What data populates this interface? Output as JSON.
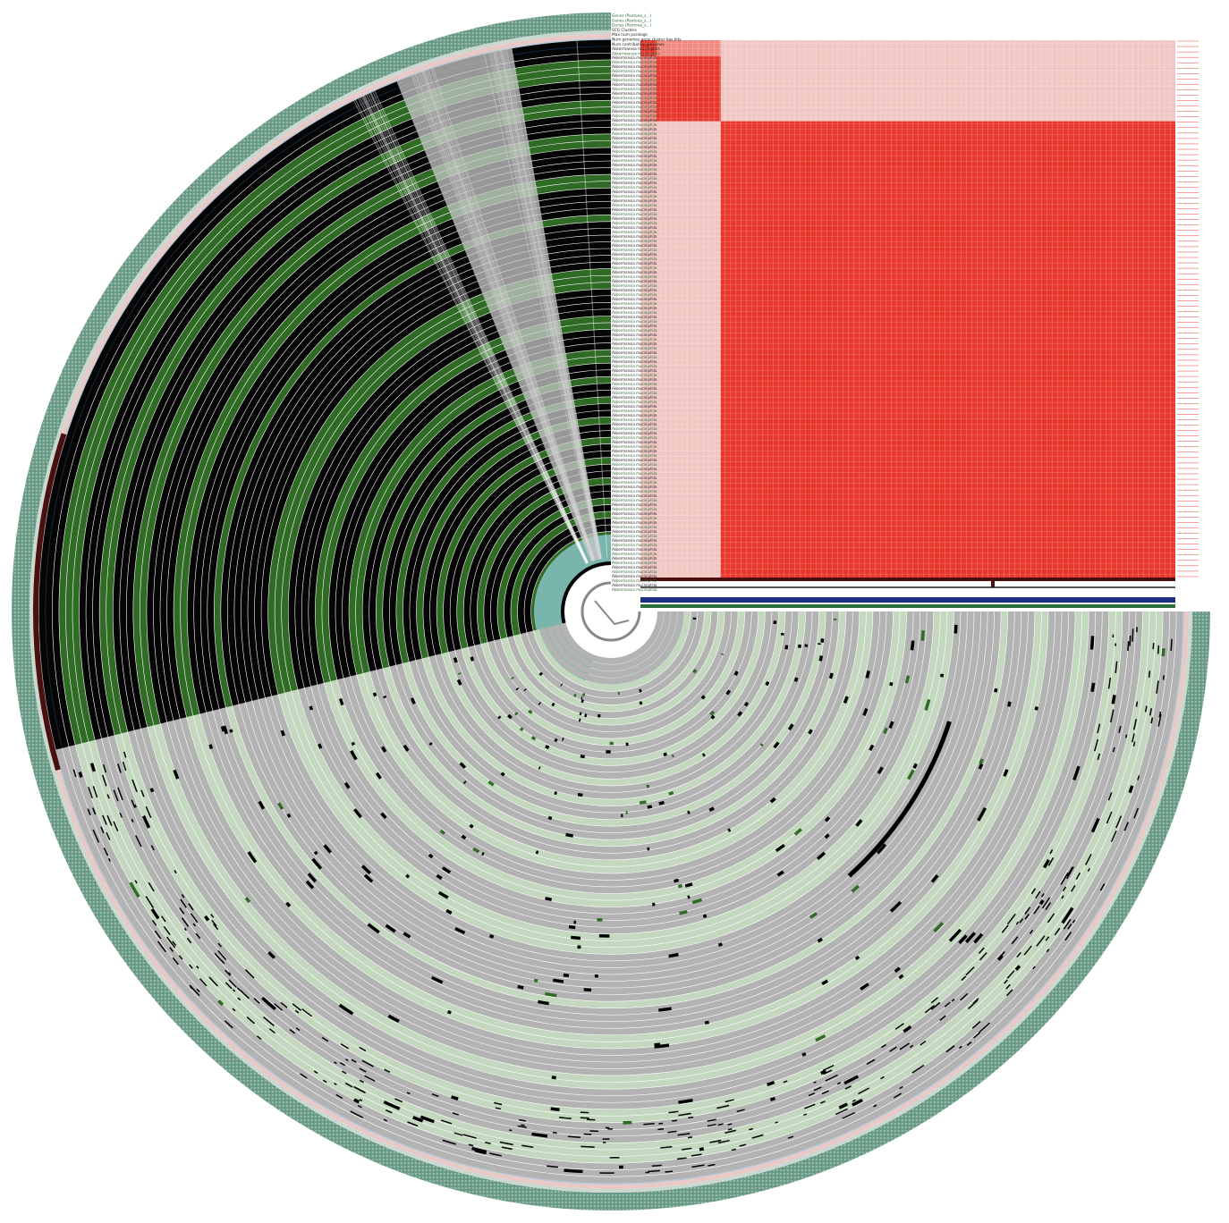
{
  "figure": {
    "layer_labels": [
      {
        "text": "Genes (Pantoea_s...)",
        "color": "#2e6b3a"
      },
      {
        "text": "Genes (Pantoea_s...)",
        "color": "#2e6b3a"
      },
      {
        "text": "Genes (Pantoea_s...)",
        "color": "#2e6b3a"
      },
      {
        "text": "SCG Clusters",
        "color": "#222222"
      },
      {
        "text": "Max num paralogs",
        "color": "#222222"
      },
      {
        "text": "Num genomes gene cluster has hits",
        "color": "#222222"
      },
      {
        "text": "Num contributing genomes",
        "color": "#222222"
      },
      {
        "text": "Akkermansia muciniphila",
        "color": "#222222"
      },
      {
        "text": "Akkermansia muciniphila",
        "color": "#2e6b3a"
      }
    ],
    "matrix_label_color": "#e0443a",
    "colors": {
      "core_black": "#050505",
      "core_green": "#2f6b25",
      "shell_gray": "#b3b3b3",
      "shell_green": "#c4d8c0",
      "outer_ring": "#6f9e8a",
      "blue_ring": "#1d3d5e",
      "brown_arc": "#4a0f0f",
      "teal_inner": "#7ab5ad",
      "heat_high": "#e8372c",
      "heat_low": "#f1c7c3",
      "bar_blue": "#1b2f86"
    }
  }
}
